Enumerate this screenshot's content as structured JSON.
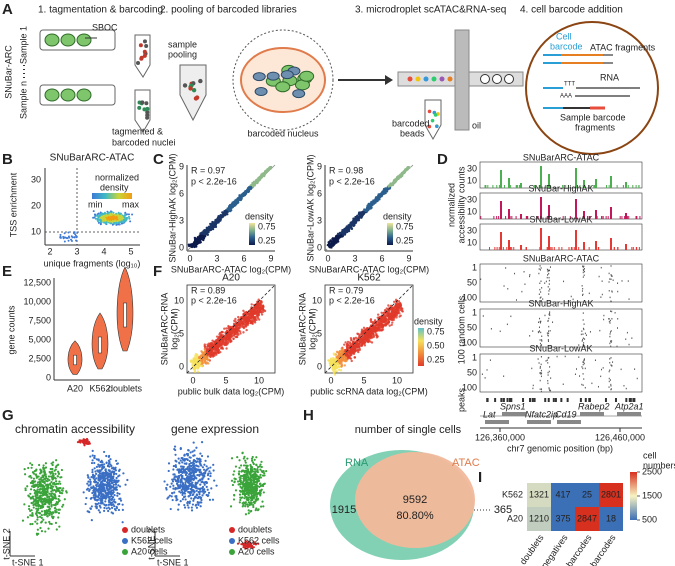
{
  "A": {
    "label": "A",
    "steps": [
      "1. tagmentation & barcoding",
      "2. pooling of barcoded libraries",
      "3. microdroplet scATAC&RNA-seq",
      "4. cell barcode addition"
    ],
    "side_label": "SNuBar-ARC",
    "sample_1": "Sample 1",
    "sample_n": "Sample n",
    "reagent": "SBOC",
    "nuclei": [
      "tagmented &",
      "barcoded nuclei"
    ],
    "pooling": [
      "sample",
      "pooling"
    ],
    "nucleus": "barcoded nucleus",
    "beads": [
      "barcoded",
      "beads"
    ],
    "oil": "oil",
    "cell_barcode": [
      "Cell",
      "barcode"
    ],
    "atac": "ATAC fragments",
    "rna": "RNA",
    "sample_barcode": [
      "Sample barcode",
      "fragments"
    ],
    "poly_t": "TTT",
    "poly_a": "AAA"
  },
  "B": {
    "label": "B",
    "title": "SNuBarARC-ATAC",
    "y_label": "TSS enrichment",
    "x_label": "unique fragments (log₁₀)",
    "legend_title": [
      "normalized",
      "density"
    ],
    "legend_min": "min",
    "legend_max": "max",
    "yticks": [
      "30",
      "20",
      "10"
    ],
    "xticks": [
      "2",
      "3",
      "4",
      "5"
    ]
  },
  "C": {
    "label": "C",
    "plots": [
      {
        "r": "R = 0.97",
        "p": "p < 2.2e-16",
        "y_label": "SNuBar-HighAK log₂(CPM)",
        "x_label": "SNuBarARC-ATAC log₂(CPM)",
        "ticks": [
          "0",
          "3",
          "6",
          "9"
        ],
        "legend_title": "density",
        "legend_ticks": [
          "0.75",
          "0.25"
        ]
      },
      {
        "r": "R = 0.98",
        "p": "p < 2.2e-16",
        "y_label": "SNuBar-LowAK log₂(CPM)",
        "x_label": "SNuBarARC-ATAC log₂(CPM)",
        "ticks": [
          "0",
          "3",
          "6",
          "9"
        ],
        "legend_title": "density",
        "legend_ticks": [
          "0.75",
          "0.25"
        ]
      }
    ]
  },
  "D": {
    "label": "D",
    "coverage_tracks": [
      "SNuBarARC-ATAC",
      "SNuBar-HighAK",
      "SNuBar-LowAK"
    ],
    "coverage_ticks": [
      "30",
      "10"
    ],
    "coverage_label": [
      "normalized",
      "accessibility counts"
    ],
    "cell_tracks": [
      "SNuBarARC-ATAC",
      "SNuBar-HighAK",
      "SNuBar-LowAK"
    ],
    "cell_ticks": [
      "1",
      "50",
      "100"
    ],
    "cell_label": "100 random cells",
    "peaks": "peaks",
    "genes": [
      "Lat",
      "Spns1",
      "Nfatc2ip",
      "Cd19",
      "Rabep2",
      "Atp2a1"
    ],
    "xticks": [
      "126,360,000",
      "126,460,000"
    ],
    "x_label": "chr7 genomic position (bp)"
  },
  "E": {
    "label": "E",
    "y_label": "gene counts",
    "yticks": [
      "12,500",
      "10,000",
      "7,500",
      "5,000",
      "2,500",
      "0"
    ],
    "categories": [
      "A20",
      "K562",
      "doublets"
    ]
  },
  "F": {
    "label": "F",
    "plots": [
      {
        "title": "A20",
        "r": "R = 0.89",
        "p": "p < 2.2e-16",
        "y_label": [
          "SNuBarARC-RNA",
          "log₂(CPM)"
        ],
        "x_label": "public bulk data log₂(CPM)",
        "ticks": [
          "0",
          "5",
          "10"
        ]
      },
      {
        "title": "K562",
        "r": "R = 0.79",
        "p": "p < 2.2e-16",
        "y_label": [
          "SNuBarARC-RNA",
          "log₂(CPM)"
        ],
        "x_label": "public scRNA data log₂(CPM)",
        "ticks": [
          "0",
          "5",
          "10"
        ]
      }
    ],
    "legend_title": "density",
    "legend_ticks": [
      "0.75",
      "0.50",
      "0.25"
    ]
  },
  "G": {
    "label": "G",
    "titles": [
      "chromatin accessibility",
      "gene expression"
    ],
    "legend": [
      "doublets",
      "K562 cells",
      "A20 cells"
    ],
    "x_axis": "t-SNE 1",
    "y_axis": "t-SNE 2"
  },
  "H": {
    "label": "H",
    "title": "number of single cells",
    "rna": "RNA",
    "atac": "ATAC",
    "rna_only": "1915",
    "both": "9592",
    "both_pct": "80.80%",
    "atac_only": "365"
  },
  "I": {
    "label": "I",
    "rows": [
      "K562",
      "A20"
    ],
    "columns": [
      "doublets",
      "negatives",
      "A20 barcodes",
      "K562 barcodes"
    ],
    "values": [
      [
        1321,
        417,
        25,
        2801
      ],
      [
        1210,
        375,
        2847,
        18
      ]
    ],
    "legend_title": [
      "cell",
      "numbers"
    ],
    "legend_ticks": [
      2500,
      1500,
      500
    ]
  }
}
